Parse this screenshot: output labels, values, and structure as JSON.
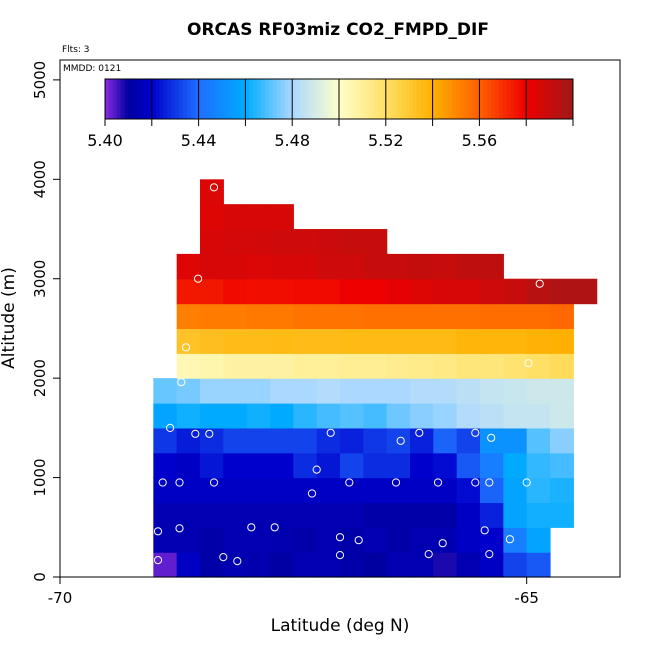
{
  "chart_data": {
    "type": "heatmap",
    "title": "ORCAS RF03miz CO2_FMPD_DIF",
    "flights_note": "Flts: 3",
    "date_note": "MMDD: 0121",
    "xlabel": "Latitude (deg N)",
    "ylabel": "Altitude (m)",
    "xlim": [
      -70.0,
      -64.0
    ],
    "ylim": [
      0,
      5200
    ],
    "x_tick_values": [
      -70,
      -65
    ],
    "x_tick_labels": [
      "-70",
      "-65"
    ],
    "y_tick_values": [
      0,
      1000,
      2000,
      3000,
      4000,
      5000
    ],
    "y_tick_labels": [
      "0",
      "1000",
      "2000",
      "3000",
      "4000",
      "5000"
    ],
    "colorbar": {
      "range": [
        5.4,
        5.6
      ],
      "tick_values": [
        5.4,
        5.44,
        5.48,
        5.52,
        5.56
      ],
      "tick_labels": [
        "5.40",
        "5.44",
        "5.48",
        "5.52",
        "5.56"
      ],
      "stops": [
        [
          5.4,
          "#8a2be2"
        ],
        [
          5.41,
          "#0000a0"
        ],
        [
          5.42,
          "#0000cd"
        ],
        [
          5.44,
          "#1e6fff"
        ],
        [
          5.46,
          "#00aaff"
        ],
        [
          5.48,
          "#aad8ff"
        ],
        [
          5.5,
          "#ffffcc"
        ],
        [
          5.52,
          "#ffe066"
        ],
        [
          5.54,
          "#ffb000"
        ],
        [
          5.56,
          "#ff6000"
        ],
        [
          5.58,
          "#ee0000"
        ],
        [
          5.6,
          "#a01818"
        ]
      ]
    },
    "cell_width_deg": 0.25,
    "cell_height_m": 250,
    "rows": [
      {
        "alt": 0,
        "lat_start": -69.0,
        "values": [
          5.403,
          5.418,
          5.412,
          5.414,
          5.413,
          5.411,
          5.414,
          5.414,
          5.412,
          5.41,
          5.414,
          5.414,
          5.408,
          5.414,
          5.418,
          5.432,
          5.436
        ]
      },
      {
        "alt": 250,
        "lat_start": -69.0,
        "values": [
          5.414,
          5.414,
          5.412,
          5.414,
          5.414,
          5.413,
          5.412,
          5.414,
          5.412,
          5.414,
          5.412,
          5.414,
          5.414,
          5.418,
          5.42,
          5.445,
          5.458
        ]
      },
      {
        "alt": 500,
        "lat_start": -69.0,
        "values": [
          5.414,
          5.414,
          5.414,
          5.414,
          5.414,
          5.414,
          5.414,
          5.414,
          5.414,
          5.412,
          5.412,
          5.412,
          5.412,
          5.418,
          5.426,
          5.458,
          5.462,
          5.462
        ]
      },
      {
        "alt": 750,
        "lat_start": -69.0,
        "values": [
          5.418,
          5.418,
          5.418,
          5.418,
          5.418,
          5.418,
          5.418,
          5.418,
          5.418,
          5.418,
          5.418,
          5.418,
          5.418,
          5.422,
          5.438,
          5.458,
          5.465,
          5.463
        ]
      },
      {
        "alt": 1000,
        "lat_start": -69.0,
        "values": [
          5.42,
          5.418,
          5.424,
          5.42,
          5.42,
          5.42,
          5.428,
          5.424,
          5.432,
          5.428,
          5.428,
          5.42,
          5.422,
          5.436,
          5.445,
          5.46,
          5.466,
          5.468
        ]
      },
      {
        "alt": 1250,
        "lat_start": -69.0,
        "values": [
          5.43,
          5.425,
          5.428,
          5.432,
          5.432,
          5.432,
          5.432,
          5.428,
          5.426,
          5.43,
          5.432,
          5.426,
          5.438,
          5.432,
          5.452,
          5.452,
          5.47,
          5.476
        ]
      },
      {
        "alt": 1500,
        "lat_start": -69.0,
        "values": [
          5.458,
          5.462,
          5.46,
          5.46,
          5.462,
          5.46,
          5.465,
          5.468,
          5.47,
          5.468,
          5.473,
          5.476,
          5.478,
          5.482,
          5.484,
          5.486,
          5.486,
          5.488
        ]
      },
      {
        "alt": 1750,
        "lat_start": -69.0,
        "values": [
          5.472,
          5.474,
          5.478,
          5.478,
          5.478,
          5.48,
          5.48,
          5.482,
          5.48,
          5.48,
          5.48,
          5.482,
          5.482,
          5.484,
          5.486,
          5.487,
          5.488,
          5.488
        ]
      },
      {
        "alt": 2000,
        "lat_start": -68.75,
        "values": [
          5.505,
          5.506,
          5.508,
          5.508,
          5.508,
          5.51,
          5.51,
          5.511,
          5.511,
          5.512,
          5.513,
          5.514,
          5.516,
          5.516,
          5.518,
          5.52,
          5.522
        ]
      },
      {
        "alt": 2250,
        "lat_start": -68.75,
        "values": [
          5.532,
          5.534,
          5.535,
          5.535,
          5.536,
          5.535,
          5.535,
          5.536,
          5.536,
          5.536,
          5.536,
          5.536,
          5.538,
          5.538,
          5.538,
          5.539,
          5.54
        ]
      },
      {
        "alt": 2500,
        "lat_start": -68.75,
        "values": [
          5.552,
          5.553,
          5.553,
          5.554,
          5.554,
          5.555,
          5.555,
          5.555,
          5.556,
          5.556,
          5.556,
          5.556,
          5.556,
          5.557,
          5.557,
          5.557,
          5.558
        ]
      },
      {
        "alt": 2750,
        "lat_start": -68.75,
        "values": [
          5.575,
          5.575,
          5.578,
          5.577,
          5.577,
          5.578,
          5.578,
          5.58,
          5.58,
          5.582,
          5.584,
          5.586,
          5.586,
          5.588,
          5.59,
          5.594,
          5.596,
          5.596
        ]
      },
      {
        "alt": 3000,
        "lat_start": -68.75,
        "values": [
          5.584,
          5.586,
          5.586,
          5.585,
          5.586,
          5.586,
          5.588,
          5.588,
          5.59,
          5.59,
          5.591,
          5.59,
          5.592,
          5.592
        ]
      },
      {
        "alt": 3250,
        "lat_start": -68.5,
        "values": [
          5.586,
          5.587,
          5.587,
          5.588,
          5.588,
          5.589,
          5.59,
          5.59
        ]
      },
      {
        "alt": 3500,
        "lat_start": -68.5,
        "values": [
          5.584,
          5.586,
          5.586,
          5.586
        ]
      },
      {
        "alt": 3750,
        "lat_start": -68.5,
        "values": [
          5.585
        ]
      }
    ],
    "sample_points": [
      [
        -68.95,
        170
      ],
      [
        -68.95,
        460
      ],
      [
        -68.72,
        490
      ],
      [
        -68.25,
        200
      ],
      [
        -68.1,
        160
      ],
      [
        -67.7,
        500
      ],
      [
        -67.95,
        500
      ],
      [
        -67.0,
        220
      ],
      [
        -67.0,
        400
      ],
      [
        -66.8,
        370
      ],
      [
        -66.05,
        230
      ],
      [
        -65.9,
        340
      ],
      [
        -65.45,
        470
      ],
      [
        -65.4,
        230
      ],
      [
        -65.18,
        380
      ],
      [
        -68.9,
        950
      ],
      [
        -68.72,
        950
      ],
      [
        -68.35,
        950
      ],
      [
        -67.3,
        840
      ],
      [
        -67.25,
        1080
      ],
      [
        -66.9,
        950
      ],
      [
        -66.4,
        950
      ],
      [
        -65.95,
        950
      ],
      [
        -65.55,
        950
      ],
      [
        -65.4,
        950
      ],
      [
        -65.0,
        950
      ],
      [
        -68.82,
        1500
      ],
      [
        -68.55,
        1440
      ],
      [
        -68.4,
        1440
      ],
      [
        -67.1,
        1450
      ],
      [
        -66.35,
        1370
      ],
      [
        -66.15,
        1450
      ],
      [
        -65.55,
        1450
      ],
      [
        -65.38,
        1400
      ],
      [
        -68.7,
        1960
      ],
      [
        -68.65,
        2310
      ],
      [
        -68.52,
        3000
      ],
      [
        -68.35,
        3920
      ],
      [
        -64.98,
        2150
      ],
      [
        -64.86,
        2950
      ]
    ]
  }
}
